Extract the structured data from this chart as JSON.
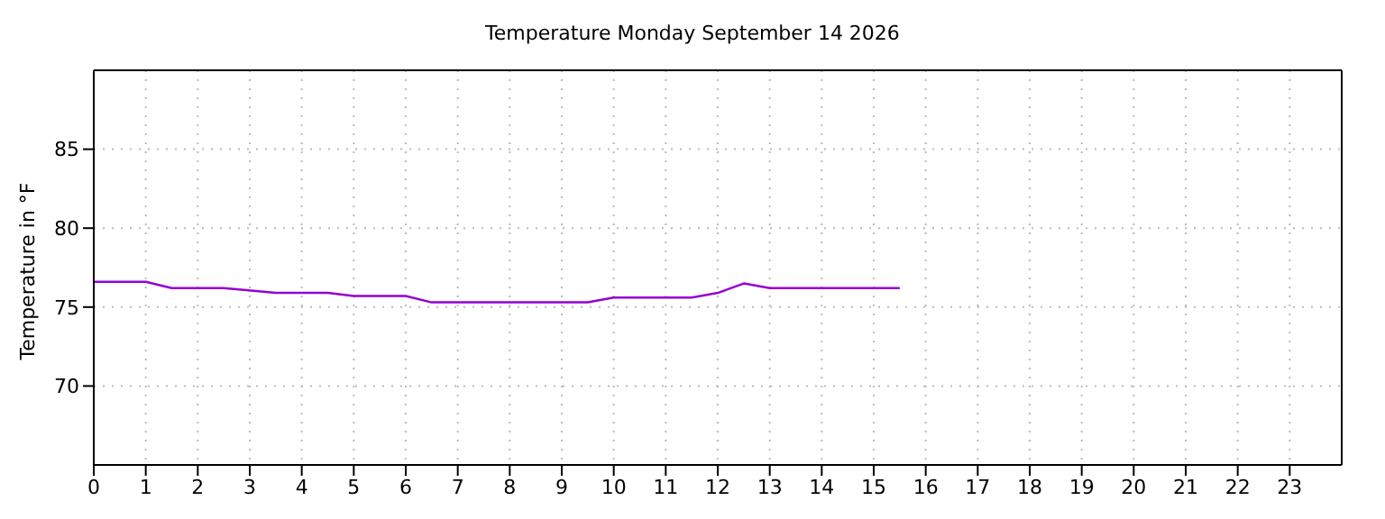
{
  "chart_data": {
    "type": "line",
    "title": "Temperature Monday September 14 2026",
    "ylabel": "Temperature in °F",
    "x": [
      0,
      1,
      1.5,
      2.5,
      3.5,
      4.5,
      5,
      6,
      6.5,
      9.5,
      10,
      11.5,
      12,
      12.5,
      13,
      15.5
    ],
    "series": [
      {
        "color": "#9400d3",
        "values": [
          76.6,
          76.6,
          76.2,
          76.2,
          75.9,
          75.9,
          75.7,
          75.7,
          75.3,
          75.3,
          75.6,
          75.6,
          75.9,
          76.5,
          76.2,
          76.2
        ]
      }
    ],
    "xlim": [
      0,
      24
    ],
    "xticks": [
      0,
      1,
      2,
      3,
      4,
      5,
      6,
      7,
      8,
      9,
      10,
      11,
      12,
      13,
      14,
      15,
      16,
      17,
      18,
      19,
      20,
      21,
      22,
      23
    ],
    "ylim": [
      65,
      90
    ],
    "yticks": [
      70,
      75,
      80,
      85
    ],
    "grid": true,
    "marker": "none",
    "line_style": "solid",
    "legend": false
  }
}
